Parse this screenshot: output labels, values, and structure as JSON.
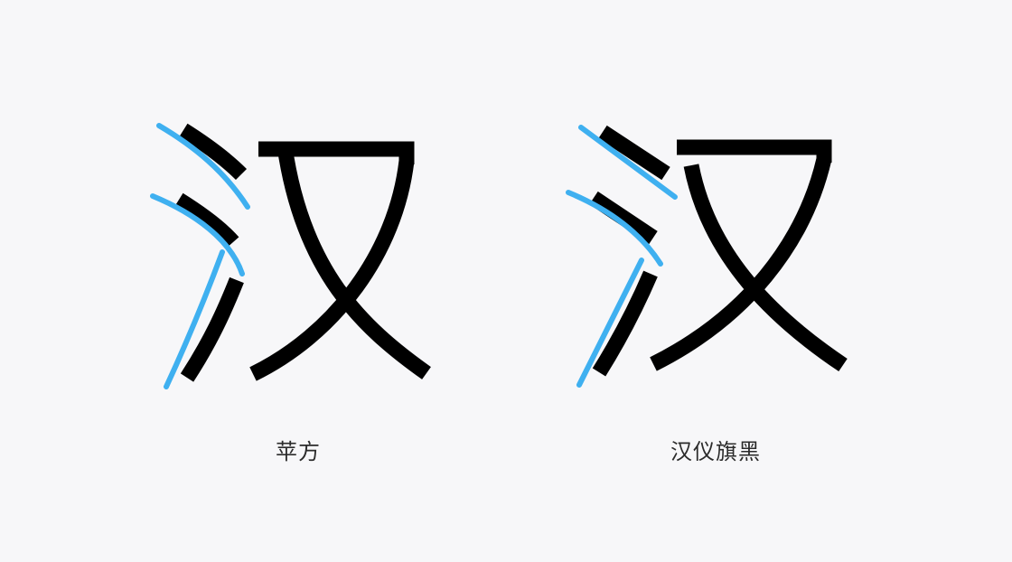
{
  "comparison": {
    "glyph_character": "汉",
    "stroke_color": "#000000",
    "guide_color": "#3fb0f0",
    "background_color": "#f7f7f9",
    "panels": [
      {
        "caption": "苹方"
      },
      {
        "caption": "汉仪旗黑"
      }
    ]
  }
}
